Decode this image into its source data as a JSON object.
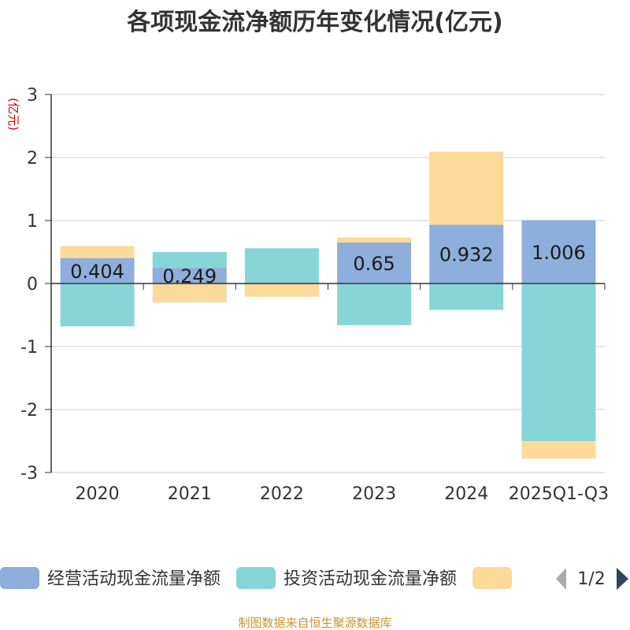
{
  "chart_data": {
    "type": "bar",
    "stacked": true,
    "title": "各项现金流净额历年变化情况(亿元)",
    "ylabel": "(亿元)",
    "xlabel": "",
    "categories": [
      "2020",
      "2021",
      "2022",
      "2023",
      "2024",
      "2025Q1-Q3"
    ],
    "ylim": [
      -3,
      3
    ],
    "yticks": [
      3,
      2,
      1,
      0,
      -1,
      -2,
      -3
    ],
    "grid": true,
    "series": [
      {
        "name": "经营活动现金流量净额",
        "color": "#8eaedb",
        "values": [
          0.404,
          0.249,
          -0.01,
          0.65,
          0.932,
          1.006
        ],
        "labels": [
          "0.404",
          "0.249",
          "",
          "0.65",
          "0.932",
          "1.006"
        ]
      },
      {
        "name": "投资活动现金流量净额",
        "color": "#88d5d8",
        "values": [
          -0.68,
          0.25,
          0.56,
          -0.66,
          -0.42,
          -2.5
        ]
      },
      {
        "name": "",
        "color": "#fdd99a",
        "values": [
          0.19,
          -0.3,
          -0.2,
          0.08,
          1.16,
          -0.28
        ]
      }
    ],
    "legend_position": "bottom",
    "legend_page": "1/2"
  },
  "source": "制图数据来自恒生聚源数据库",
  "colors": {
    "title": "#333333",
    "axis_label": "#cc0000",
    "tick": "#333333",
    "grid": "#cccccc",
    "source": "#c8962a",
    "pager_active": "#2f4554",
    "pager_inactive": "#aaaaaa"
  }
}
